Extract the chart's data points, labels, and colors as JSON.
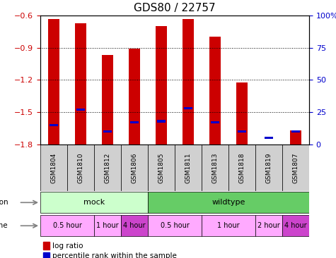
{
  "title": "GDS80 / 22757",
  "samples": [
    "GSM1804",
    "GSM1810",
    "GSM1812",
    "GSM1806",
    "GSM1805",
    "GSM1811",
    "GSM1813",
    "GSM1818",
    "GSM1819",
    "GSM1807"
  ],
  "log_ratios": [
    -0.63,
    -0.67,
    -0.97,
    -0.91,
    -0.7,
    -0.63,
    -0.8,
    -1.22,
    -1.8,
    -1.67
  ],
  "percentile_ranks": [
    15,
    27,
    10,
    17,
    18,
    28,
    17,
    10,
    5,
    10
  ],
  "ylim_left": [
    -1.8,
    -0.6
  ],
  "ylim_right": [
    0,
    100
  ],
  "yticks_left": [
    -1.8,
    -1.5,
    -1.2,
    -0.9,
    -0.6
  ],
  "yticks_right": [
    0,
    25,
    50,
    75,
    100
  ],
  "left_color": "#cc0000",
  "right_color": "#0000cc",
  "bar_color_red": "#cc0000",
  "bar_color_blue": "#0000cc",
  "infection_groups": [
    {
      "label": "mock",
      "start": 0,
      "end": 4,
      "color": "#ccffcc"
    },
    {
      "label": "wildtype",
      "start": 4,
      "end": 10,
      "color": "#66cc66"
    }
  ],
  "time_groups": [
    {
      "label": "0.5 hour",
      "start": 0,
      "end": 2,
      "color": "#ffaaff"
    },
    {
      "label": "1 hour",
      "start": 2,
      "end": 3,
      "color": "#ffaaff"
    },
    {
      "label": "4 hour",
      "start": 3,
      "end": 4,
      "color": "#cc44cc"
    },
    {
      "label": "0.5 hour",
      "start": 4,
      "end": 6,
      "color": "#ffaaff"
    },
    {
      "label": "1 hour",
      "start": 6,
      "end": 8,
      "color": "#ffaaff"
    },
    {
      "label": "2 hour",
      "start": 8,
      "end": 9,
      "color": "#ffaaff"
    },
    {
      "label": "4 hour",
      "start": 9,
      "end": 10,
      "color": "#cc44cc"
    }
  ],
  "background_color": "#ffffff",
  "grid_color": "#000000",
  "tick_label_color_left": "#cc0000",
  "tick_label_color_right": "#0000cc"
}
